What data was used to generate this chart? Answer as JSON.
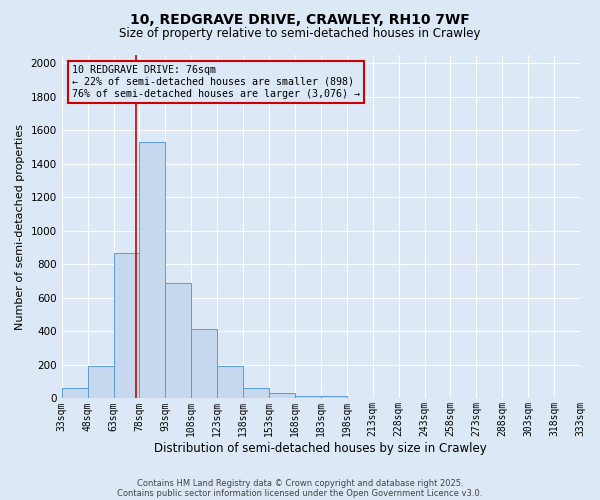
{
  "title_line1": "10, REDGRAVE DRIVE, CRAWLEY, RH10 7WF",
  "title_line2": "Size of property relative to semi-detached houses in Crawley",
  "xlabel": "Distribution of semi-detached houses by size in Crawley",
  "ylabel": "Number of semi-detached properties",
  "footnote1": "Contains HM Land Registry data © Crown copyright and database right 2025.",
  "footnote2": "Contains public sector information licensed under the Open Government Licence v3.0.",
  "annotation_title": "10 REDGRAVE DRIVE: 76sqm",
  "annotation_line1": "← 22% of semi-detached houses are smaller (898)",
  "annotation_line2": "76% of semi-detached houses are larger (3,076) →",
  "property_size": 76,
  "bar_edges": [
    33,
    48,
    63,
    78,
    93,
    108,
    123,
    138,
    153,
    168,
    183,
    198,
    213,
    228,
    243,
    258,
    273,
    288,
    303,
    318,
    333
  ],
  "bar_heights": [
    65,
    195,
    870,
    1530,
    690,
    415,
    195,
    65,
    30,
    15,
    15,
    0,
    0,
    0,
    0,
    0,
    0,
    0,
    0,
    0
  ],
  "bar_color": "#c5d8ee",
  "bar_edge_color": "#5b9bd5",
  "redline_x": 76,
  "ylim": [
    0,
    2050
  ],
  "yticks": [
    0,
    200,
    400,
    600,
    800,
    1000,
    1200,
    1400,
    1600,
    1800,
    2000
  ],
  "bg_color": "#dce8f5",
  "grid_color": "#ffffff",
  "annotation_box_color": "#cc0000",
  "title_fontsize": 10,
  "subtitle_fontsize": 8.5,
  "ylabel_fontsize": 8,
  "xlabel_fontsize": 8.5,
  "tick_fontsize": 7,
  "footnote_fontsize": 6
}
